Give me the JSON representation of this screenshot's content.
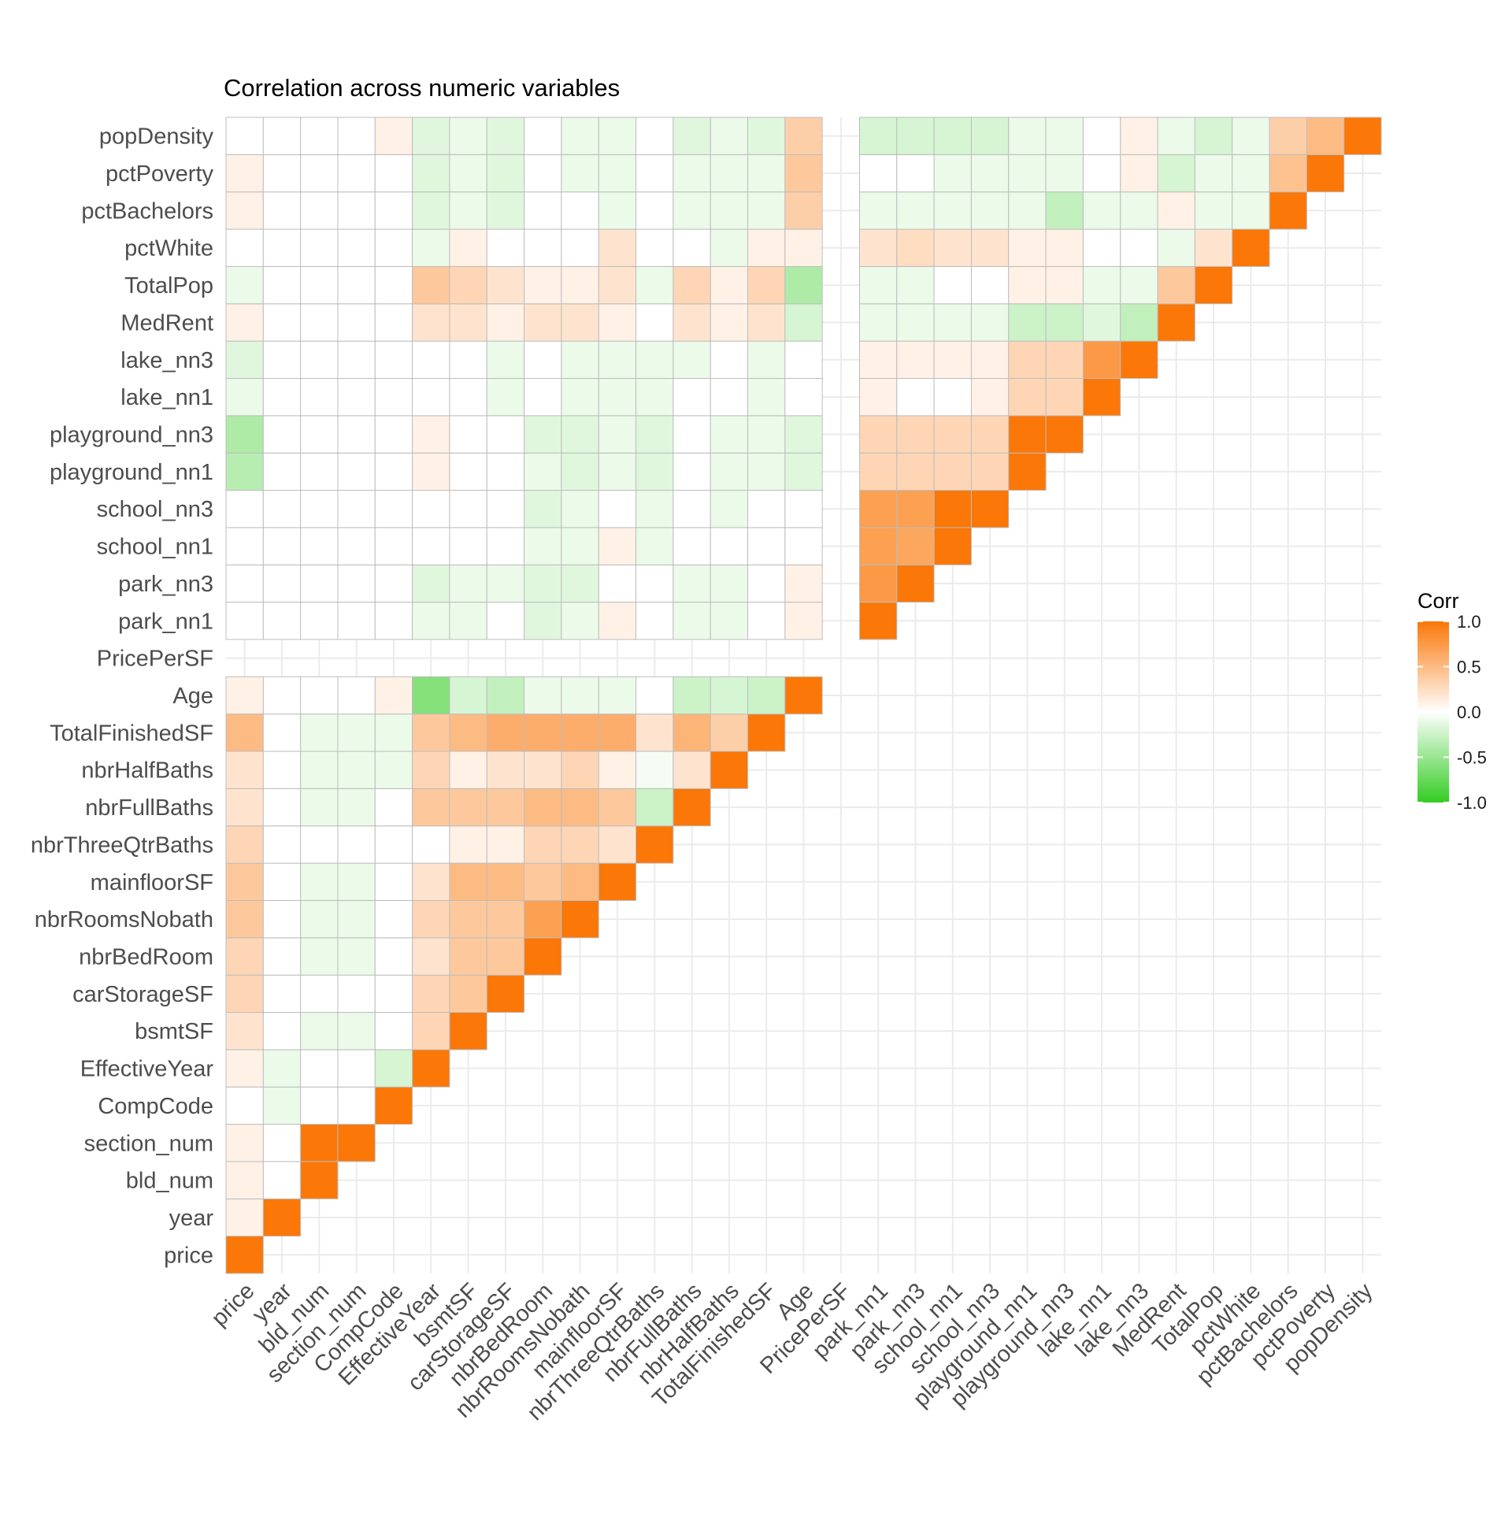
{
  "chart_data": {
    "type": "heatmap",
    "title": "Correlation across numeric variables",
    "xlabel": "",
    "ylabel": "",
    "layout": "lower-triangle",
    "variables": [
      "price",
      "year",
      "bld_num",
      "section_num",
      "CompCode",
      "EffectiveYear",
      "bsmtSF",
      "carStorageSF",
      "nbrBedRoom",
      "nbrRoomsNobath",
      "mainfloorSF",
      "nbrThreeQtrBaths",
      "nbrFullBaths",
      "nbrHalfBaths",
      "TotalFinishedSF",
      "Age",
      "PricePerSF",
      "park_nn1",
      "park_nn3",
      "school_nn1",
      "school_nn3",
      "playground_nn1",
      "playground_nn3",
      "lake_nn1",
      "lake_nn3",
      "MedRent",
      "TotalPop",
      "pctWhite",
      "pctBachelors",
      "pctPoverty",
      "popDensity"
    ],
    "missing_variable": "PricePerSF",
    "matrix": [
      [
        1
      ],
      [
        0.1,
        1
      ],
      [
        0.1,
        0,
        1
      ],
      [
        0.1,
        0,
        1,
        1
      ],
      [
        0,
        -0.1,
        0,
        0,
        1
      ],
      [
        0.1,
        -0.1,
        0,
        0,
        -0.2,
        1
      ],
      [
        0.2,
        0,
        -0.1,
        -0.1,
        0,
        0.3,
        1
      ],
      [
        0.3,
        0,
        0,
        0,
        0,
        0.3,
        0.4,
        1
      ],
      [
        0.3,
        0,
        -0.1,
        -0.1,
        0,
        0.2,
        0.4,
        0.4,
        1
      ],
      [
        0.4,
        0,
        -0.1,
        -0.1,
        0,
        0.3,
        0.4,
        0.4,
        0.7,
        1
      ],
      [
        0.4,
        0,
        -0.1,
        -0.1,
        0,
        0.2,
        0.5,
        0.5,
        0.4,
        0.5,
        1
      ],
      [
        0.3,
        0,
        0,
        0,
        0,
        0,
        0.1,
        0.1,
        0.3,
        0.3,
        0.2,
        1
      ],
      [
        0.2,
        0,
        -0.1,
        -0.1,
        0,
        0.4,
        0.4,
        0.4,
        0.5,
        0.5,
        0.4,
        -0.25,
        1
      ],
      [
        0.2,
        0,
        -0.1,
        -0.1,
        -0.1,
        0.3,
        0.1,
        0.2,
        0.2,
        0.3,
        0.1,
        -0.05,
        0.2,
        1
      ],
      [
        0.5,
        0,
        -0.1,
        -0.1,
        -0.1,
        0.4,
        0.5,
        0.6,
        0.6,
        0.6,
        0.6,
        0.2,
        0.55,
        0.35,
        1
      ],
      [
        0.1,
        0,
        0,
        0,
        0.1,
        -0.6,
        -0.2,
        -0.3,
        -0.1,
        -0.1,
        -0.1,
        0,
        -0.25,
        -0.2,
        -0.25,
        1
      ],
      [
        null,
        null,
        null,
        null,
        null,
        null,
        null,
        null,
        null,
        null,
        null,
        null,
        null,
        null,
        null,
        null,
        null
      ],
      [
        0,
        0,
        0,
        0,
        0,
        -0.1,
        -0.1,
        0,
        -0.15,
        -0.1,
        0.1,
        0,
        -0.1,
        -0.1,
        0,
        0.1,
        null,
        1
      ],
      [
        0,
        0,
        0,
        0,
        0,
        -0.15,
        -0.1,
        -0.1,
        -0.15,
        -0.15,
        0,
        0,
        -0.1,
        -0.1,
        0,
        0.1,
        null,
        0.75,
        1
      ],
      [
        0,
        0,
        0,
        0,
        0,
        0,
        0,
        0,
        -0.1,
        -0.1,
        0.1,
        -0.1,
        0,
        0,
        0,
        0,
        null,
        0.7,
        0.65,
        1
      ],
      [
        0,
        0,
        0,
        0,
        0,
        0,
        0,
        0,
        -0.15,
        -0.1,
        0,
        -0.1,
        0,
        -0.1,
        0,
        0,
        null,
        0.7,
        0.7,
        1,
        1
      ],
      [
        -0.35,
        0,
        0,
        0,
        0,
        0.1,
        0,
        0,
        -0.1,
        -0.15,
        -0.1,
        -0.15,
        0,
        -0.1,
        -0.1,
        -0.15,
        null,
        0.3,
        0.3,
        0.3,
        0.3,
        1
      ],
      [
        -0.4,
        0,
        0,
        0,
        0,
        0.1,
        0,
        0,
        -0.15,
        -0.15,
        -0.1,
        -0.15,
        0,
        -0.1,
        -0.1,
        -0.15,
        null,
        0.3,
        0.3,
        0.3,
        0.3,
        1,
        1
      ],
      [
        -0.1,
        0,
        0,
        0,
        0,
        0,
        0,
        -0.1,
        0,
        -0.1,
        -0.1,
        -0.1,
        0,
        0,
        -0.1,
        0,
        null,
        0.1,
        0,
        0,
        0.1,
        0.3,
        0.3,
        1
      ],
      [
        -0.15,
        0,
        0,
        0,
        0,
        0,
        0,
        -0.1,
        0,
        -0.1,
        -0.1,
        -0.1,
        -0.1,
        0,
        -0.1,
        0,
        null,
        0.1,
        0.1,
        0.1,
        0.1,
        0.3,
        0.3,
        0.75,
        1
      ],
      [
        0.1,
        0,
        0,
        0,
        0,
        0.2,
        0.2,
        0.1,
        0.2,
        0.2,
        0.1,
        0,
        0.2,
        0.1,
        0.2,
        -0.2,
        null,
        -0.1,
        -0.1,
        -0.1,
        -0.1,
        -0.25,
        -0.25,
        -0.15,
        -0.3,
        1
      ],
      [
        -0.1,
        0,
        0,
        0,
        0,
        0.4,
        0.3,
        0.2,
        0.1,
        0.1,
        0.2,
        -0.1,
        0.3,
        0.1,
        0.3,
        -0.4,
        null,
        -0.1,
        -0.1,
        0,
        0,
        0.1,
        0.1,
        -0.1,
        -0.1,
        0.4,
        1
      ],
      [
        0,
        0,
        0,
        0,
        0,
        -0.1,
        0.1,
        0,
        0,
        0,
        0.2,
        0,
        0,
        -0.1,
        0.1,
        0.1,
        null,
        0.2,
        0.25,
        0.2,
        0.2,
        0.1,
        0.1,
        0,
        0,
        -0.1,
        0.2,
        1
      ],
      [
        0.1,
        0,
        0,
        0,
        0,
        -0.15,
        -0.1,
        -0.15,
        0,
        0,
        -0.1,
        0,
        -0.1,
        -0.1,
        -0.1,
        0.35,
        null,
        -0.1,
        -0.1,
        -0.1,
        -0.1,
        -0.1,
        -0.3,
        -0.1,
        -0.1,
        0.1,
        -0.1,
        -0.1,
        1
      ],
      [
        0.1,
        0,
        0,
        0,
        0,
        -0.15,
        -0.1,
        -0.15,
        0,
        -0.1,
        -0.1,
        0,
        -0.1,
        -0.1,
        -0.1,
        0.4,
        null,
        0,
        0,
        -0.1,
        -0.1,
        -0.1,
        -0.1,
        0,
        0.1,
        -0.2,
        -0.1,
        -0.1,
        0.45,
        1
      ],
      [
        0,
        0,
        0,
        0,
        0.1,
        -0.15,
        -0.1,
        -0.15,
        0,
        -0.1,
        -0.1,
        0,
        -0.15,
        -0.1,
        -0.15,
        0.35,
        null,
        -0.2,
        -0.2,
        -0.2,
        -0.2,
        -0.1,
        -0.1,
        0,
        0.1,
        -0.1,
        -0.2,
        -0.1,
        0.35,
        0.5,
        1
      ]
    ],
    "color_scale": {
      "low": "#33cc22",
      "mid": "#ffffff",
      "high": "#fa7708",
      "limits": [
        -1,
        1
      ]
    },
    "legend": {
      "title": "Corr",
      "ticks": [
        "1.0",
        "0.5",
        "0.0",
        "-0.5",
        "-1.0"
      ],
      "tick_values": [
        1,
        0.5,
        0,
        -0.5,
        -1
      ],
      "position": "right"
    },
    "grid": true
  }
}
